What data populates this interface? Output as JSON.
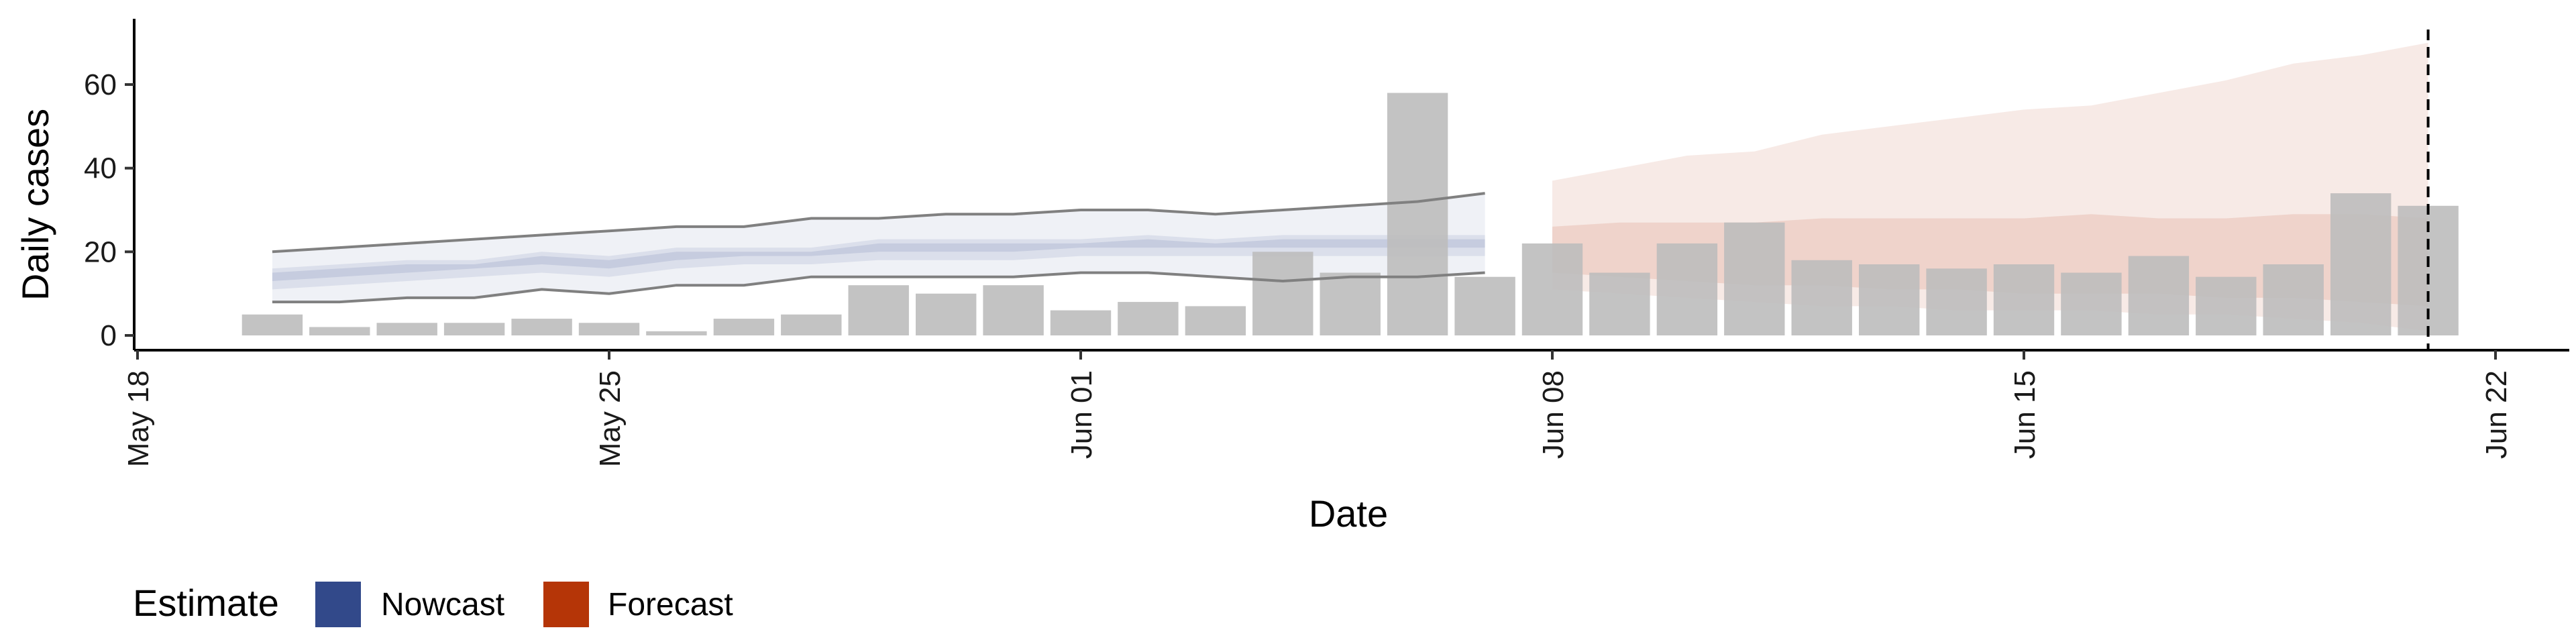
{
  "chart_data": {
    "type": "bar",
    "xlabel": "Date",
    "ylabel": "Daily cases",
    "xlim": [
      "2020-05-18",
      "2020-06-22"
    ],
    "ylim": [
      -2,
      75
    ],
    "x_ticks": [
      "2020-05-18",
      "2020-05-25",
      "2020-06-01",
      "2020-06-08",
      "2020-06-15",
      "2020-06-22"
    ],
    "x_tick_labels": [
      "May 18",
      "May 25",
      "Jun 01",
      "Jun 08",
      "Jun 15",
      "Jun 22"
    ],
    "y_ticks": [
      0,
      20,
      40,
      60
    ],
    "y_tick_labels": [
      "0",
      "20",
      "40",
      "60"
    ],
    "vline_date": "2020-06-21",
    "grid": false,
    "bar_color": "#bdbdbd",
    "bars": {
      "dates": [
        "2020-05-20",
        "2020-05-21",
        "2020-05-22",
        "2020-05-23",
        "2020-05-24",
        "2020-05-25",
        "2020-05-26",
        "2020-05-27",
        "2020-05-28",
        "2020-05-29",
        "2020-05-30",
        "2020-05-31",
        "2020-06-01",
        "2020-06-02",
        "2020-06-03",
        "2020-06-04",
        "2020-06-05",
        "2020-06-06",
        "2020-06-07",
        "2020-06-08",
        "2020-06-09",
        "2020-06-10",
        "2020-06-11",
        "2020-06-12",
        "2020-06-13",
        "2020-06-14",
        "2020-06-15",
        "2020-06-16",
        "2020-06-17",
        "2020-06-18",
        "2020-06-19",
        "2020-06-20",
        "2020-06-21"
      ],
      "values": [
        5,
        2,
        3,
        3,
        4,
        3,
        1,
        4,
        5,
        12,
        10,
        12,
        6,
        8,
        7,
        20,
        15,
        58,
        14,
        22,
        15,
        22,
        27,
        18,
        17,
        16,
        17,
        15,
        19,
        14,
        17,
        34,
        31
      ]
    },
    "nowcast": {
      "dates": [
        "2020-05-20",
        "2020-05-21",
        "2020-05-22",
        "2020-05-23",
        "2020-05-24",
        "2020-05-25",
        "2020-05-26",
        "2020-05-27",
        "2020-05-28",
        "2020-05-29",
        "2020-05-30",
        "2020-05-31",
        "2020-06-01",
        "2020-06-02",
        "2020-06-03",
        "2020-06-04",
        "2020-06-05",
        "2020-06-06",
        "2020-06-07"
      ],
      "lower_90": [
        8,
        8,
        9,
        9,
        11,
        10,
        12,
        12,
        14,
        14,
        14,
        14,
        15,
        15,
        14,
        13,
        14,
        14,
        15
      ],
      "upper_90": [
        20,
        21,
        22,
        23,
        24,
        25,
        26,
        26,
        28,
        28,
        29,
        29,
        30,
        30,
        29,
        30,
        31,
        32,
        34
      ],
      "lower_50": [
        11,
        12,
        13,
        14,
        15,
        14,
        16,
        17,
        17,
        18,
        18,
        18,
        19,
        19,
        19,
        19,
        19,
        19,
        19
      ],
      "upper_50": [
        16,
        17,
        18,
        18,
        20,
        19,
        21,
        21,
        21,
        23,
        23,
        23,
        23,
        24,
        23,
        24,
        24,
        24,
        24
      ],
      "lower_20": [
        13,
        14,
        15,
        16,
        17,
        16,
        18,
        19,
        19,
        20,
        20,
        20,
        21,
        21,
        21,
        21,
        21,
        21,
        21
      ],
      "upper_20": [
        15,
        16,
        17,
        17,
        19,
        18,
        20,
        20,
        20,
        22,
        22,
        22,
        22,
        23,
        22,
        23,
        23,
        23,
        23
      ]
    },
    "forecast": {
      "dates": [
        "2020-06-08",
        "2020-06-09",
        "2020-06-10",
        "2020-06-11",
        "2020-06-12",
        "2020-06-13",
        "2020-06-14",
        "2020-06-15",
        "2020-06-16",
        "2020-06-17",
        "2020-06-18",
        "2020-06-19",
        "2020-06-20",
        "2020-06-21"
      ],
      "lower_90": [
        11,
        10,
        9,
        8,
        7,
        7,
        6,
        6,
        6,
        5,
        5,
        4,
        3,
        1
      ],
      "upper_90": [
        37,
        40,
        43,
        44,
        48,
        50,
        52,
        54,
        55,
        58,
        61,
        65,
        67,
        70
      ],
      "lower_50": [
        15,
        14,
        13,
        12,
        12,
        11,
        11,
        10,
        10,
        10,
        9,
        9,
        8,
        7
      ],
      "upper_50": [
        26,
        27,
        27,
        27,
        28,
        28,
        28,
        28,
        29,
        28,
        28,
        29,
        29,
        28
      ]
    },
    "colors": {
      "nowcast": "#32498a",
      "forecast": "#b53507",
      "line": "#808080",
      "axis": "#000000"
    },
    "legend": {
      "title": "Estimate",
      "position": "bottom-left",
      "items": [
        {
          "label": "Nowcast",
          "color": "#32498a"
        },
        {
          "label": "Forecast",
          "color": "#b53507"
        }
      ]
    }
  }
}
